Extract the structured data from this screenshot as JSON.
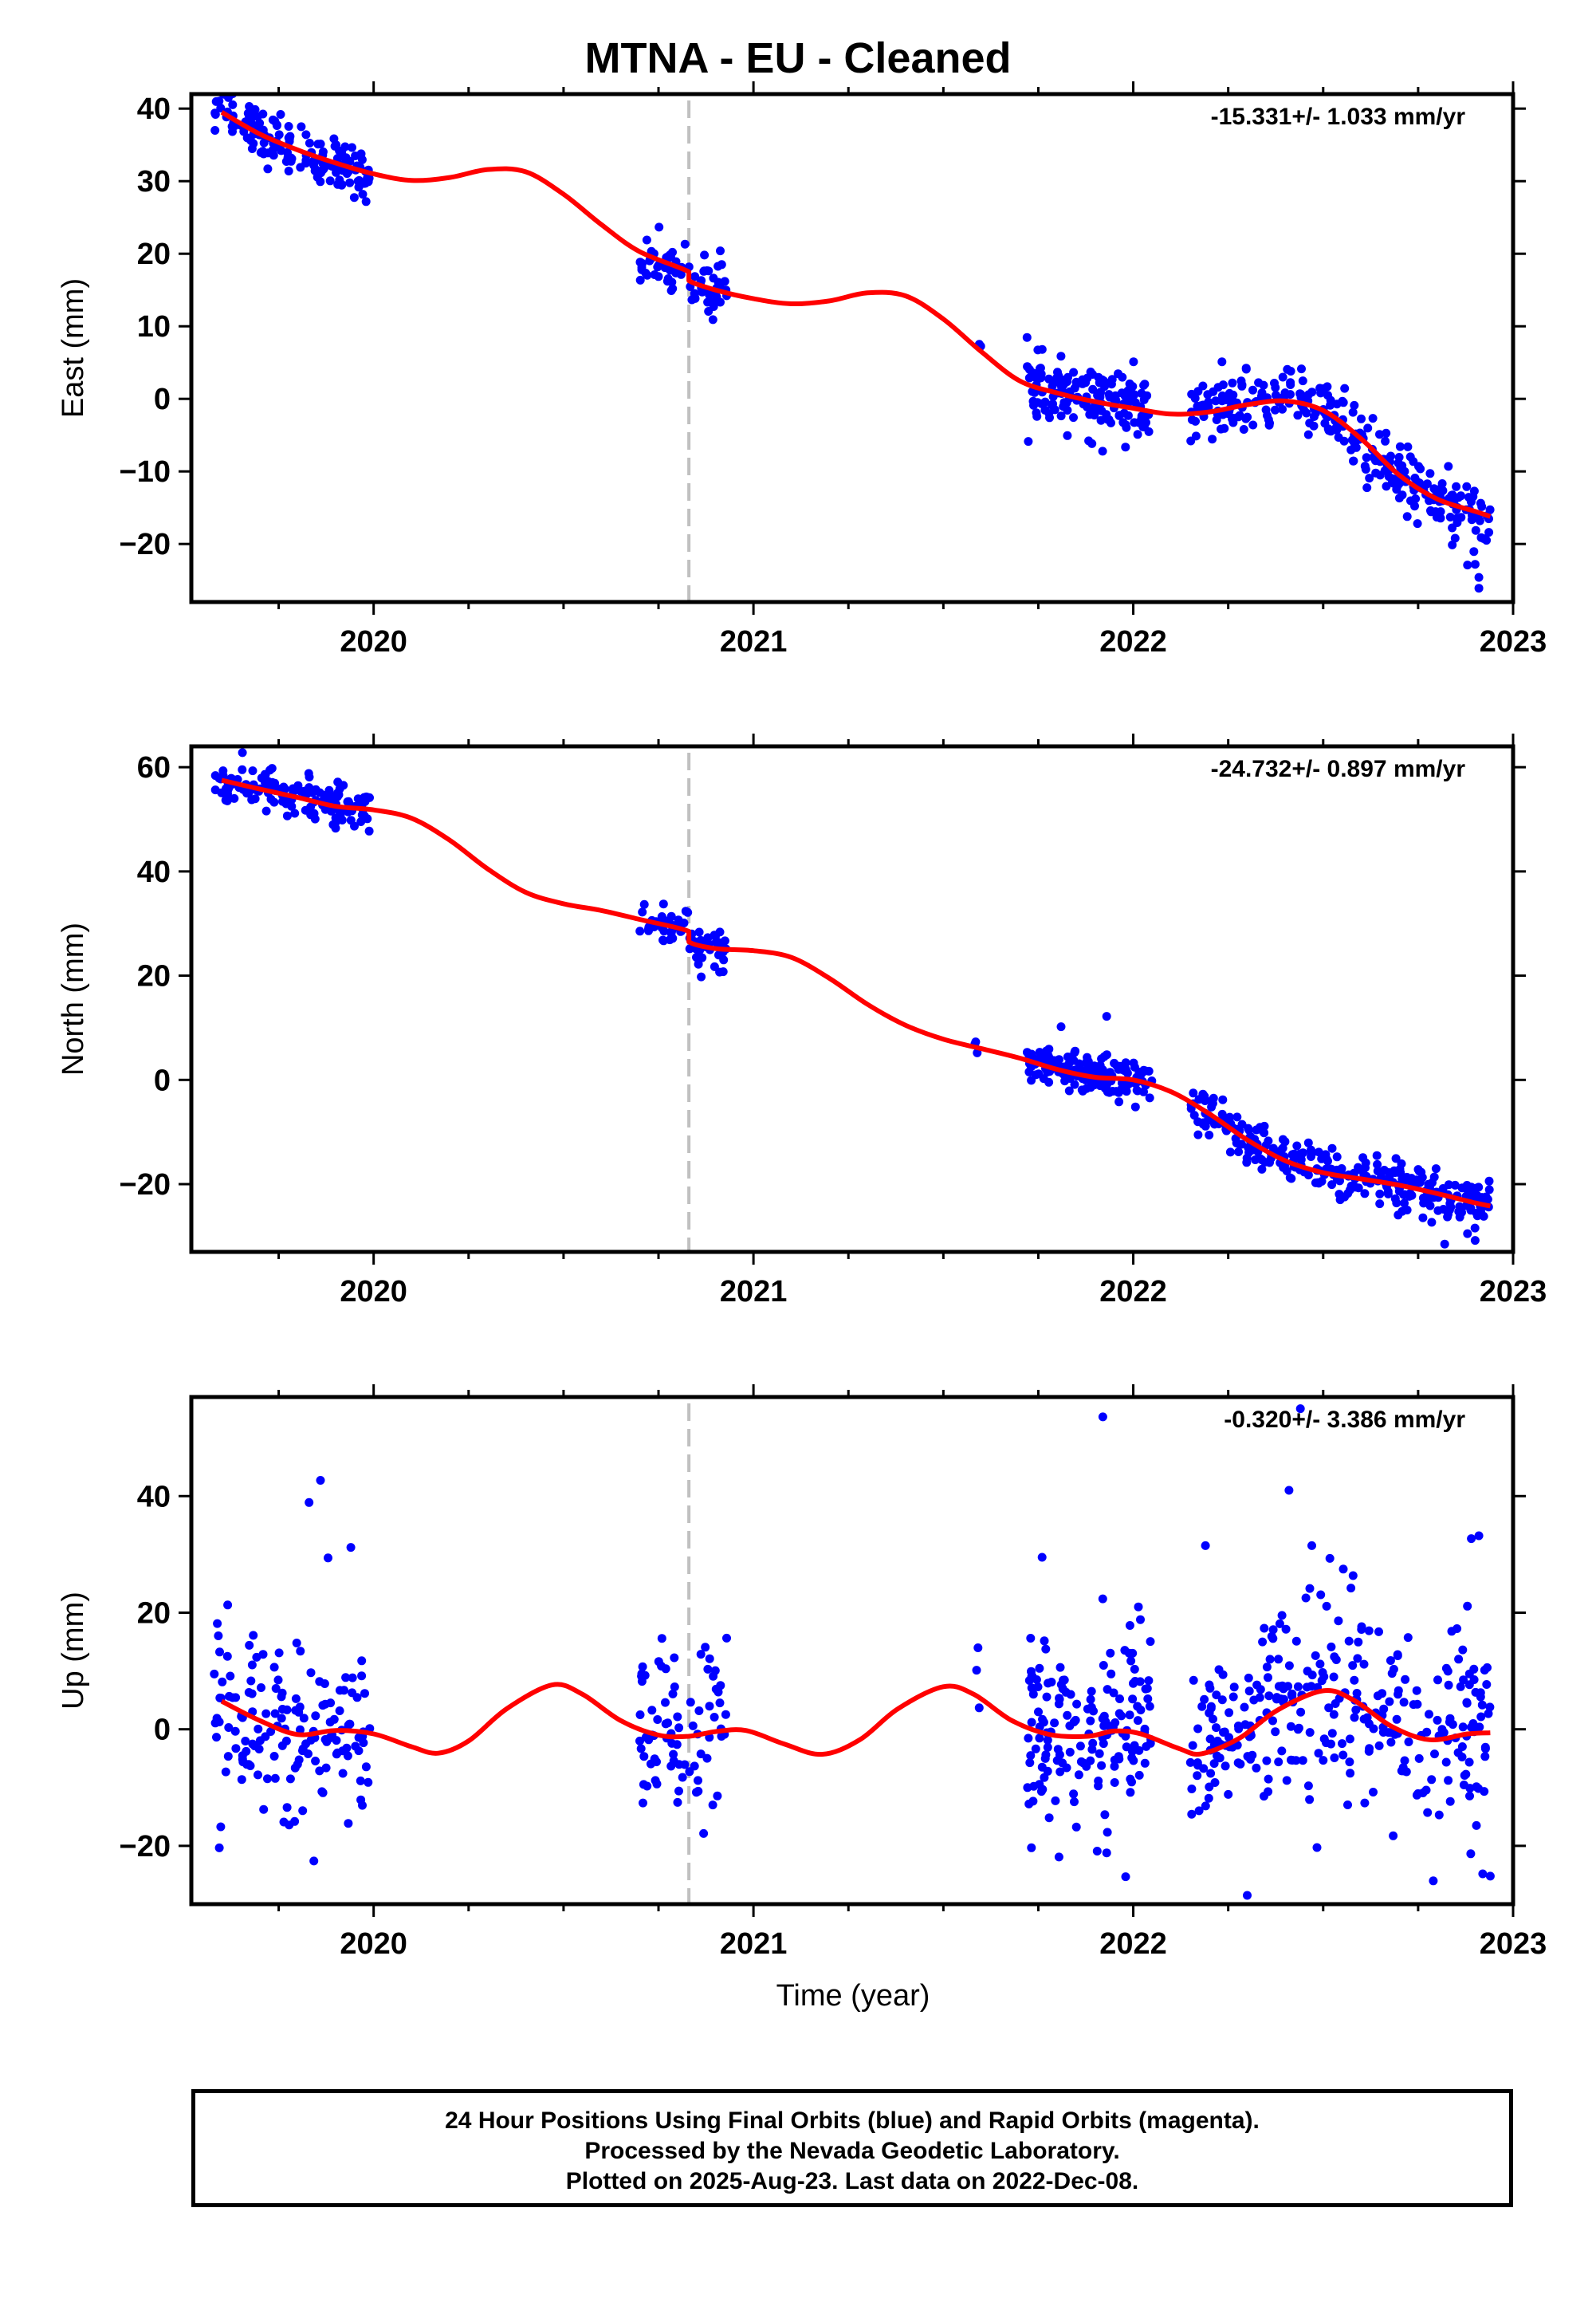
{
  "title": "MTNA  - EU - Cleaned",
  "xlabel": "Time (year)",
  "footer": [
    "24 Hour Positions Using Final Orbits (blue) and Rapid Orbits (magenta).",
    "Processed by the Nevada Geodetic Laboratory.",
    "Plotted on 2025-Aug-23. Last data on 2022-Dec-08."
  ],
  "colors": {
    "data": "#0000ff",
    "model": "#ff0000",
    "event_line": "#c0c0c0",
    "axes": "#000000"
  },
  "chart_data": [
    {
      "type": "scatter",
      "name": "east",
      "ylabel": "East (mm)",
      "rate_text": "-15.331+/- 1.033 mm/yr",
      "xlim": [
        2019.52,
        2023.0
      ],
      "ylim": [
        -28,
        42
      ],
      "xticks": [
        2020,
        2021,
        2022,
        2023
      ],
      "yticks": [
        -20,
        -10,
        0,
        10,
        20,
        30,
        40
      ],
      "event_line_x": 2020.83,
      "model": [
        [
          2019.6,
          39.5
        ],
        [
          2019.7,
          36.5
        ],
        [
          2019.8,
          34.3
        ],
        [
          2019.9,
          32.5
        ],
        [
          2020.0,
          31.0
        ],
        [
          2020.1,
          30.1
        ],
        [
          2020.2,
          30.5
        ],
        [
          2020.3,
          31.6
        ],
        [
          2020.4,
          31.3
        ],
        [
          2020.5,
          28.2
        ],
        [
          2020.6,
          24.0
        ],
        [
          2020.7,
          20.3
        ],
        [
          2020.83,
          17.5
        ],
        [
          2020.83,
          16.3
        ],
        [
          2020.9,
          15.0
        ],
        [
          2021.0,
          13.8
        ],
        [
          2021.1,
          13.1
        ],
        [
          2021.2,
          13.5
        ],
        [
          2021.3,
          14.6
        ],
        [
          2021.4,
          14.2
        ],
        [
          2021.5,
          11.0
        ],
        [
          2021.6,
          6.5
        ],
        [
          2021.7,
          2.5
        ],
        [
          2021.8,
          0.8
        ],
        [
          2021.9,
          -0.4
        ],
        [
          2022.0,
          -1.3
        ],
        [
          2022.1,
          -2.1
        ],
        [
          2022.2,
          -1.8
        ],
        [
          2022.3,
          -0.8
        ],
        [
          2022.4,
          -0.3
        ],
        [
          2022.5,
          -1.6
        ],
        [
          2022.6,
          -5.5
        ],
        [
          2022.7,
          -10.5
        ],
        [
          2022.8,
          -13.8
        ],
        [
          2022.9,
          -15.5
        ],
        [
          2022.94,
          -16.2
        ]
      ],
      "segments": [
        {
          "t0": 2019.58,
          "t1": 2019.99,
          "n": 150,
          "trend": [
            [
              2019.58,
              40.0
            ],
            [
              2019.7,
              36.5
            ],
            [
              2019.8,
              34.3
            ],
            [
              2019.9,
              32.5
            ],
            [
              2019.99,
              31.1
            ]
          ],
          "sd": 1.8
        },
        {
          "t0": 2020.7,
          "t1": 2020.93,
          "n": 80,
          "trend": [
            [
              2020.7,
              19.3
            ],
            [
              2020.83,
              17.6
            ],
            [
              2020.84,
              16.3
            ],
            [
              2020.93,
              14.6
            ]
          ],
          "sd": 1.9
        },
        {
          "t0": 2021.58,
          "t1": 2021.6,
          "n": 3,
          "trend": [
            [
              2021.58,
              7.0
            ],
            [
              2021.6,
              7.0
            ]
          ],
          "sd": 0.6
        },
        {
          "t0": 2021.72,
          "t1": 2022.05,
          "n": 160,
          "trend": [
            [
              2021.72,
              2.2
            ],
            [
              2021.8,
              0.8
            ],
            [
              2021.9,
              -0.4
            ],
            [
              2022.05,
              -1.7
            ]
          ],
          "sd": 2.3
        },
        {
          "t0": 2022.15,
          "t1": 2022.94,
          "n": 300,
          "trend": [
            [
              2022.15,
              -2.0
            ],
            [
              2022.3,
              -0.8
            ],
            [
              2022.4,
              -0.3
            ],
            [
              2022.5,
              -1.6
            ],
            [
              2022.6,
              -5.5
            ],
            [
              2022.7,
              -10.5
            ],
            [
              2022.8,
              -13.8
            ],
            [
              2022.94,
              -16.5
            ]
          ],
          "sd": 2.1
        }
      ],
      "extra_points": [
        [
          2022.9,
          -22.8
        ],
        [
          2022.91,
          -24.6
        ],
        [
          2022.91,
          -26.1
        ],
        [
          2022.88,
          -22.9
        ],
        [
          2022.93,
          -19.5
        ]
      ]
    },
    {
      "type": "scatter",
      "name": "north",
      "ylabel": "North (mm)",
      "rate_text": "-24.732+/- 0.897 mm/yr",
      "xlim": [
        2019.52,
        2023.0
      ],
      "ylim": [
        -33,
        64
      ],
      "xticks": [
        2020,
        2021,
        2022,
        2023
      ],
      "yticks": [
        -20,
        0,
        20,
        40,
        60
      ],
      "event_line_x": 2020.83,
      "model": [
        [
          2019.6,
          57.5
        ],
        [
          2019.7,
          55.8
        ],
        [
          2019.8,
          54.2
        ],
        [
          2019.9,
          52.5
        ],
        [
          2020.0,
          51.8
        ],
        [
          2020.1,
          50.2
        ],
        [
          2020.2,
          46.0
        ],
        [
          2020.3,
          40.5
        ],
        [
          2020.4,
          36.0
        ],
        [
          2020.5,
          33.8
        ],
        [
          2020.6,
          32.5
        ],
        [
          2020.7,
          30.8
        ],
        [
          2020.83,
          28.5
        ],
        [
          2020.83,
          26.5
        ],
        [
          2020.9,
          25.2
        ],
        [
          2021.0,
          24.8
        ],
        [
          2021.1,
          23.5
        ],
        [
          2021.2,
          19.5
        ],
        [
          2021.3,
          14.5
        ],
        [
          2021.4,
          10.5
        ],
        [
          2021.5,
          7.8
        ],
        [
          2021.6,
          6.0
        ],
        [
          2021.7,
          4.2
        ],
        [
          2021.8,
          2.0
        ],
        [
          2021.9,
          0.5
        ],
        [
          2022.0,
          0.0
        ],
        [
          2022.1,
          -2.3
        ],
        [
          2022.2,
          -6.5
        ],
        [
          2022.3,
          -11.5
        ],
        [
          2022.4,
          -15.5
        ],
        [
          2022.5,
          -17.8
        ],
        [
          2022.6,
          -19.0
        ],
        [
          2022.7,
          -20.2
        ],
        [
          2022.8,
          -21.8
        ],
        [
          2022.9,
          -23.6
        ],
        [
          2022.94,
          -24.2
        ]
      ],
      "segments": [
        {
          "t0": 2019.58,
          "t1": 2019.99,
          "n": 150,
          "trend": [
            [
              2019.58,
              57.6
            ],
            [
              2019.7,
              55.8
            ],
            [
              2019.8,
              54.2
            ],
            [
              2019.9,
              52.5
            ],
            [
              2019.99,
              51.9
            ]
          ],
          "sd": 2.0
        },
        {
          "t0": 2020.7,
          "t1": 2020.93,
          "n": 80,
          "trend": [
            [
              2020.7,
              30.6
            ],
            [
              2020.83,
              28.6
            ],
            [
              2020.84,
              26.4
            ],
            [
              2020.93,
              25.0
            ]
          ],
          "sd": 2.2
        },
        {
          "t0": 2021.58,
          "t1": 2021.6,
          "n": 3,
          "trend": [
            [
              2021.58,
              6.5
            ],
            [
              2021.6,
              6.0
            ]
          ],
          "sd": 1.8
        },
        {
          "t0": 2021.72,
          "t1": 2022.05,
          "n": 160,
          "trend": [
            [
              2021.72,
              3.6
            ],
            [
              2021.8,
              2.0
            ],
            [
              2021.9,
              0.5
            ],
            [
              2022.05,
              -0.5
            ]
          ],
          "sd": 1.9
        },
        {
          "t0": 2022.15,
          "t1": 2022.94,
          "n": 300,
          "trend": [
            [
              2022.15,
              -4.5
            ],
            [
              2022.3,
              -11.5
            ],
            [
              2022.4,
              -15.5
            ],
            [
              2022.5,
              -17.8
            ],
            [
              2022.6,
              -19.0
            ],
            [
              2022.7,
              -20.2
            ],
            [
              2022.8,
              -21.8
            ],
            [
              2022.94,
              -24.2
            ]
          ],
          "sd": 2.2
        }
      ],
      "extra_points": [
        [
          2021.81,
          10.2
        ],
        [
          2021.93,
          12.2
        ],
        [
          2022.88,
          -29.5
        ],
        [
          2022.9,
          -30.8
        ],
        [
          2022.82,
          -31.5
        ]
      ]
    },
    {
      "type": "scatter",
      "name": "up",
      "ylabel": "Up (mm)",
      "rate_text": "-0.320+/- 3.386 mm/yr",
      "xlim": [
        2019.52,
        2023.0
      ],
      "ylim": [
        -30,
        57
      ],
      "xticks": [
        2020,
        2021,
        2022,
        2023
      ],
      "yticks": [
        -20,
        0,
        20,
        40
      ],
      "event_line_x": 2020.83,
      "model": [
        [
          2019.6,
          4.8
        ],
        [
          2019.7,
          1.5
        ],
        [
          2019.8,
          -0.9
        ],
        [
          2019.9,
          -0.2
        ],
        [
          2020.0,
          -0.8
        ],
        [
          2020.1,
          -3.0
        ],
        [
          2020.17,
          -4.1
        ],
        [
          2020.25,
          -2.0
        ],
        [
          2020.35,
          3.5
        ],
        [
          2020.47,
          7.6
        ],
        [
          2020.55,
          6.0
        ],
        [
          2020.65,
          1.5
        ],
        [
          2020.75,
          -1.0
        ],
        [
          2020.83,
          -1.2
        ],
        [
          2020.9,
          -0.4
        ],
        [
          2020.98,
          -0.2
        ],
        [
          2021.08,
          -2.5
        ],
        [
          2021.18,
          -4.3
        ],
        [
          2021.28,
          -1.8
        ],
        [
          2021.38,
          3.5
        ],
        [
          2021.5,
          7.3
        ],
        [
          2021.58,
          6.0
        ],
        [
          2021.68,
          1.5
        ],
        [
          2021.78,
          -0.9
        ],
        [
          2021.88,
          -1.2
        ],
        [
          2021.95,
          -0.3
        ],
        [
          2022.02,
          -0.8
        ],
        [
          2022.12,
          -3.3
        ],
        [
          2022.18,
          -4.2
        ],
        [
          2022.28,
          -1.5
        ],
        [
          2022.38,
          3.3
        ],
        [
          2022.5,
          6.6
        ],
        [
          2022.58,
          5.0
        ],
        [
          2022.68,
          0.5
        ],
        [
          2022.78,
          -1.8
        ],
        [
          2022.88,
          -0.8
        ],
        [
          2022.94,
          -0.6
        ]
      ],
      "segments": [
        {
          "t0": 2019.58,
          "t1": 2019.99,
          "n": 150,
          "trend": [
            [
              2019.58,
              5.0
            ],
            [
              2019.7,
              1.5
            ],
            [
              2019.8,
              -0.9
            ],
            [
              2019.9,
              -0.2
            ],
            [
              2019.99,
              -0.8
            ]
          ],
          "sd": 7.5
        },
        {
          "t0": 2020.7,
          "t1": 2020.93,
          "n": 80,
          "trend": [
            [
              2020.7,
              0.5
            ],
            [
              2020.83,
              -1.2
            ],
            [
              2020.93,
              -0.3
            ]
          ],
          "sd": 8.0
        },
        {
          "t0": 2021.58,
          "t1": 2021.6,
          "n": 3,
          "trend": [
            [
              2021.58,
              13.0
            ],
            [
              2021.6,
              13.0
            ]
          ],
          "sd": 4.0
        },
        {
          "t0": 2021.72,
          "t1": 2022.05,
          "n": 160,
          "trend": [
            [
              2021.72,
              0.5
            ],
            [
              2021.8,
              -0.9
            ],
            [
              2021.88,
              -1.2
            ],
            [
              2021.95,
              -0.3
            ],
            [
              2022.05,
              -1.5
            ]
          ],
          "sd": 8.5
        },
        {
          "t0": 2022.15,
          "t1": 2022.94,
          "n": 300,
          "trend": [
            [
              2022.15,
              -4.0
            ],
            [
              2022.28,
              -1.5
            ],
            [
              2022.38,
              3.3
            ],
            [
              2022.5,
              6.6
            ],
            [
              2022.58,
              5.0
            ],
            [
              2022.68,
              0.5
            ],
            [
              2022.78,
              -1.8
            ],
            [
              2022.94,
              -0.6
            ]
          ],
          "sd": 8.8
        }
      ],
      "extra_points": [
        [
          2019.86,
          42.7
        ],
        [
          2019.83,
          38.9
        ],
        [
          2019.94,
          31.2
        ],
        [
          2019.88,
          29.4
        ],
        [
          2021.92,
          53.6
        ],
        [
          2022.44,
          55.0
        ],
        [
          2022.41,
          41.0
        ],
        [
          2022.47,
          31.5
        ],
        [
          2022.3,
          -28.5
        ],
        [
          2021.98,
          -25.3
        ],
        [
          2022.79,
          -26.0
        ],
        [
          2021.93,
          -21.2
        ],
        [
          2022.92,
          -24.8
        ],
        [
          2022.94,
          -25.2
        ],
        [
          2022.91,
          33.2
        ],
        [
          2022.89,
          32.7
        ],
        [
          2021.76,
          29.5
        ],
        [
          2022.19,
          31.5
        ]
      ]
    }
  ]
}
